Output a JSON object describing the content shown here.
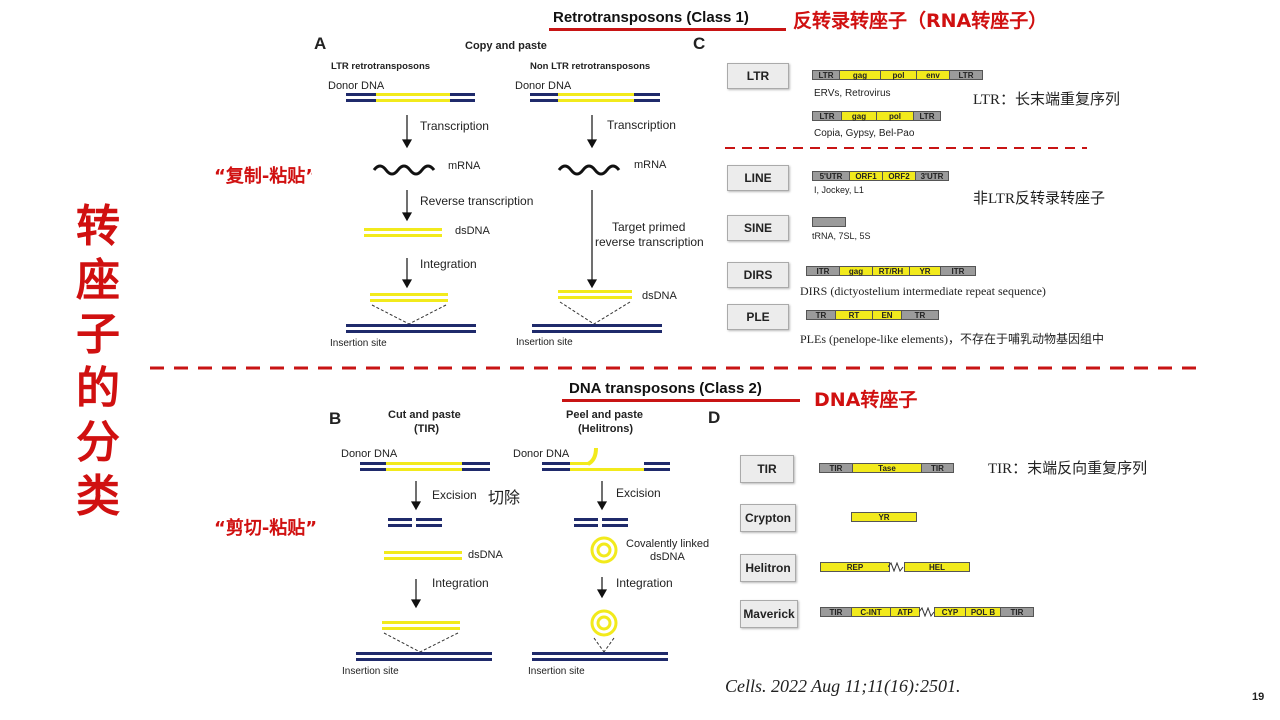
{
  "slide": {
    "vertical_title": "转座子的分类",
    "page_number": "19",
    "citation": "Cells. 2022 Aug 11;11(16):2501."
  },
  "class1": {
    "header_en": "Retrotransposons (Class 1)",
    "header_cn": "反转录转座子（RNA转座子）",
    "annotation": "“复制-粘贴”",
    "panel_a": {
      "letter": "A",
      "mode": "Copy and paste",
      "col1_title": "LTR retrotransposons",
      "col2_title": "Non LTR retrotransposons",
      "donor": "Donor DNA",
      "transcription": "Transcription",
      "mrna": "mRNA",
      "reverse_transcription": "Reverse transcription",
      "target_primed_1": "Target primed",
      "target_primed_2": "reverse transcription",
      "dsdna": "dsDNA",
      "integration": "Integration",
      "insertion_site": "Insertion site"
    },
    "panel_c": {
      "letter": "C",
      "ltr": {
        "label": "LTR",
        "struct1": [
          "LTR",
          "gag",
          "pol",
          "env",
          "LTR"
        ],
        "caption1": "ERVs, Retrovirus",
        "struct2": [
          "LTR",
          "gag",
          "pol",
          "LTR"
        ],
        "caption2": "Copia, Gypsy, Bel-Pao",
        "note": "LTR：长末端重复序列"
      },
      "line": {
        "label": "LINE",
        "struct": [
          "5'UTR",
          "ORF1",
          "ORF2",
          "3'UTR"
        ],
        "caption": "I, Jockey, L1"
      },
      "nonltr_note": "非LTR反转录转座子",
      "sine": {
        "label": "SINE",
        "caption": "tRNA, 7SL, 5S"
      },
      "dirs": {
        "label": "DIRS",
        "struct": [
          "ITR",
          "gag",
          "RT/RH",
          "YR",
          "ITR"
        ],
        "caption": "DIRS (dictyostelium intermediate repeat sequence)"
      },
      "ple": {
        "label": "PLE",
        "struct": [
          "TR",
          "RT",
          "EN",
          "TR"
        ],
        "caption": "PLEs (penelope-like elements)，不存在于哺乳动物基因组中"
      }
    }
  },
  "class2": {
    "header_en": "DNA transposons (Class 2)",
    "header_cn": "DNA转座子",
    "annotation": "“剪切-粘贴”",
    "panel_b": {
      "letter": "B",
      "col1_title_1": "Cut and paste",
      "col1_title_2": "(TIR)",
      "col2_title_1": "Peel and paste",
      "col2_title_2": "(Helitrons)",
      "donor": "Donor DNA",
      "excision": "Excision",
      "excision_cn": "切除",
      "dsdna": "dsDNA",
      "covalent_1": "Covalently linked",
      "covalent_2": "dsDNA",
      "integration": "Integration",
      "insertion_site": "Insertion site"
    },
    "panel_d": {
      "letter": "D",
      "tir": {
        "label": "TIR",
        "struct": [
          "TIR",
          "Tase",
          "TIR"
        ],
        "note": "TIR：末端反向重复序列"
      },
      "crypton": {
        "label": "Crypton",
        "struct": [
          "YR"
        ]
      },
      "helitron": {
        "label": "Helitron",
        "struct": [
          "REP",
          "HEL"
        ]
      },
      "maverick": {
        "label": "Maverick",
        "struct": [
          "TIR",
          "C-INT",
          "ATP",
          "CYP",
          "POL B",
          "TIR"
        ]
      }
    }
  },
  "colors": {
    "accent_red": "#d01010",
    "dna_navy": "#1f2a6b",
    "transposon_yellow": "#f2ea1c",
    "segment_gray": "#9b9b9b"
  }
}
